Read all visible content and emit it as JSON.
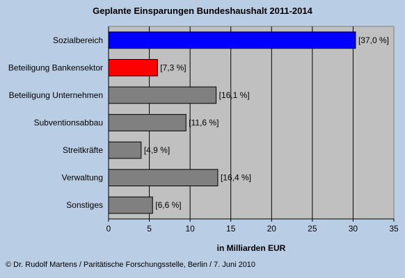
{
  "chart_data": {
    "type": "bar",
    "orientation": "horizontal",
    "title": "Geplante Einsparungen Bundeshaushalt 2011-2014",
    "xlabel": "in Milliarden EUR",
    "ylabel": "",
    "xlim": [
      0,
      35
    ],
    "xticks": [
      0,
      5,
      10,
      15,
      20,
      25,
      30,
      35
    ],
    "grid": true,
    "categories": [
      "Sozialbereich",
      "Beteiligung Bankensektor",
      "Beteiligung Unternehmen",
      "Subventionsabbau",
      "Streitkräfte",
      "Verwaltung",
      "Sonstiges"
    ],
    "values": [
      30.3,
      6.0,
      13.2,
      9.5,
      4.0,
      13.4,
      5.4
    ],
    "data_labels": [
      "[37,0 %]",
      "[7,3 %]",
      "[16,1 %]",
      "[11,6 %]",
      "[4,9 %]",
      "[16,4 %]",
      "[6,6 %]"
    ],
    "colors": [
      "#0000ff",
      "#ff0000",
      "#808080",
      "#808080",
      "#808080",
      "#808080",
      "#808080"
    ]
  },
  "footer": "© Dr. Rudolf Martens / Paritätische Forschungsstelle, Berlin / 7. Juni 2010"
}
